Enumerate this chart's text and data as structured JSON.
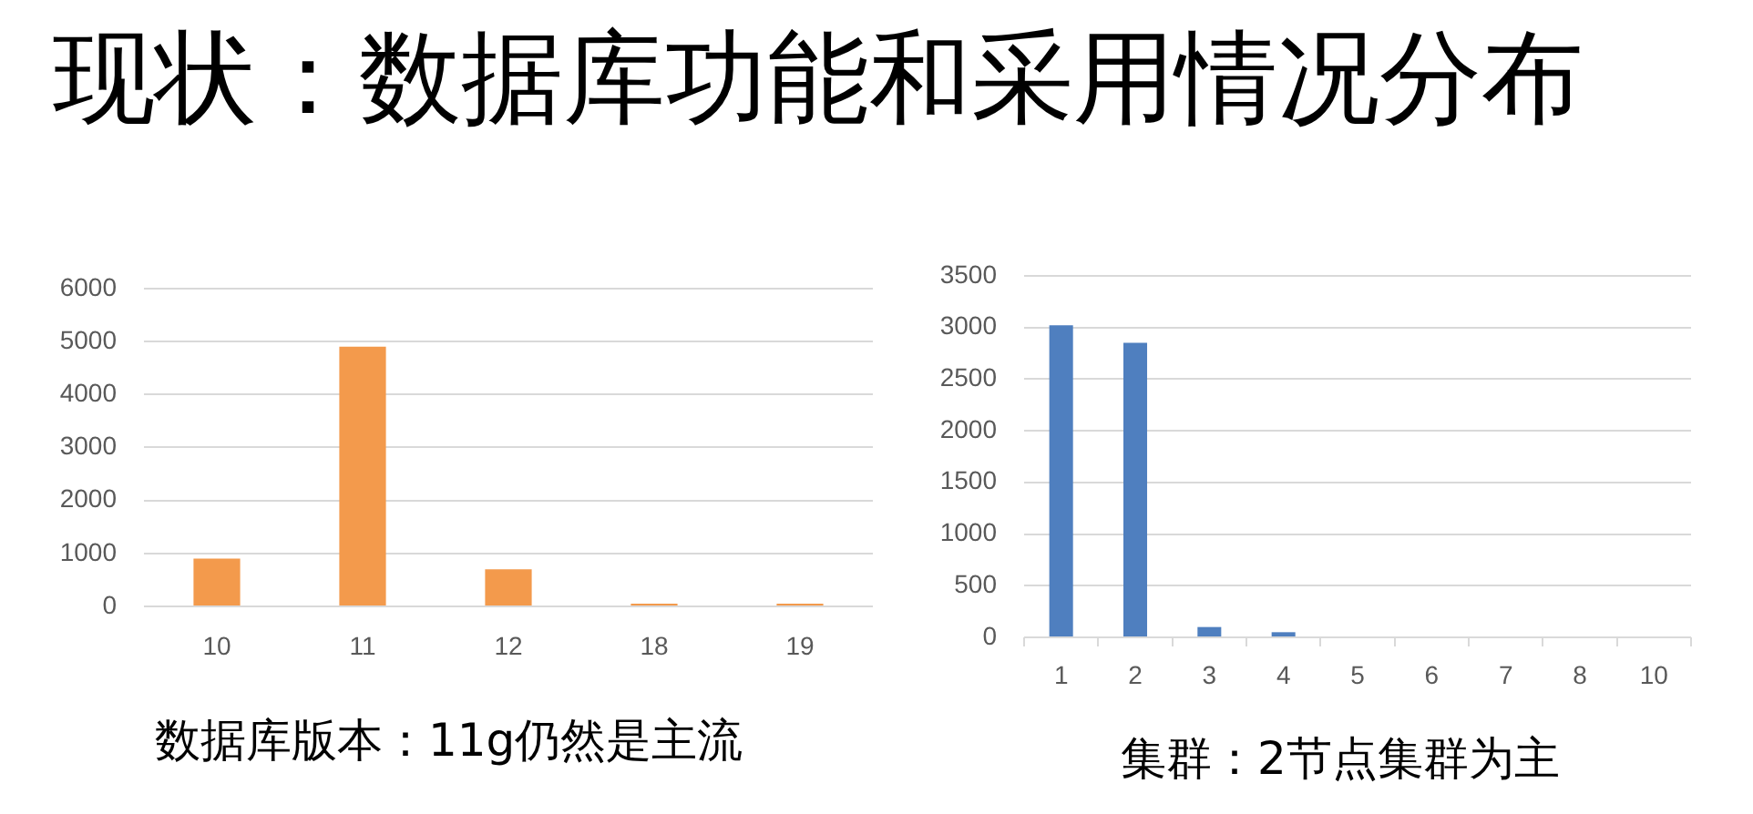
{
  "chart_data": [
    {
      "type": "bar",
      "title": "现状：数据库功能和采用情况分布",
      "categories": [
        "10",
        "11",
        "12",
        "18",
        "19"
      ],
      "values": [
        900,
        4900,
        700,
        50,
        50
      ],
      "color": "#f39a4c",
      "ylim": [
        0,
        6000
      ],
      "yticks": [
        0,
        1000,
        2000,
        3000,
        4000,
        5000,
        6000
      ],
      "grid": "y",
      "annotations": [
        "数据库版本：11g仍然是主流"
      ]
    },
    {
      "type": "bar",
      "categories": [
        "1",
        "2",
        "3",
        "4",
        "5",
        "6",
        "7",
        "8",
        "10"
      ],
      "values": [
        3020,
        2850,
        100,
        50,
        0,
        0,
        0,
        0,
        0
      ],
      "color": "#4f7fbf",
      "ylim": [
        0,
        3500
      ],
      "yticks": [
        0,
        500,
        1000,
        1500,
        2000,
        2500,
        3000,
        3500
      ],
      "grid": "y",
      "annotations": [
        "集群：2节点集群为主"
      ]
    }
  ]
}
